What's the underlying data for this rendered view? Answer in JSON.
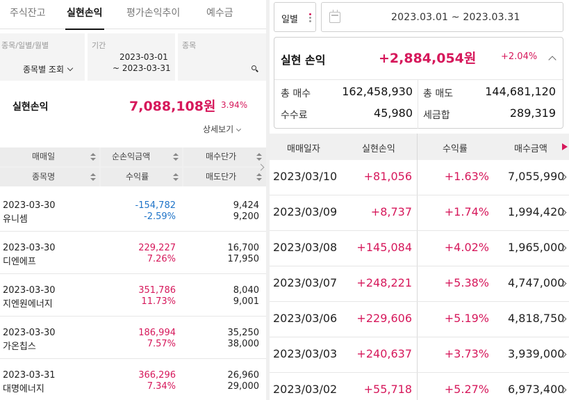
{
  "left": {
    "tabs": [
      {
        "label": "주식잔고"
      },
      {
        "label": "실현손익"
      },
      {
        "label": "평가손익추이"
      },
      {
        "label": "예수금"
      }
    ],
    "filter": {
      "col1_label": "종목/일별/월별",
      "col1_value": "종목별 조회",
      "col2_label": "기간",
      "col2_from": "2023-03-01",
      "col2_to": "~ 2023-03-31",
      "col3_label": "종목"
    },
    "summary": {
      "label": "실현손익",
      "amount": "7,088,108원",
      "rate": "3.94%",
      "detail": "상세보기"
    },
    "table": {
      "headers_row1": [
        "매매일",
        "순손익금액",
        "매수단가"
      ],
      "headers_row2": [
        "종목명",
        "수익률",
        "매도단가"
      ],
      "rows": [
        {
          "date": "2023-03-30",
          "name": "유니셈",
          "amount": "-154,782",
          "rate": "-2.59%",
          "buy": "9,424",
          "sell": "9,200",
          "sign": "neg"
        },
        {
          "date": "2023-03-30",
          "name": "디엔에프",
          "amount": "229,227",
          "rate": "7.26%",
          "buy": "16,700",
          "sell": "17,950",
          "sign": "pos"
        },
        {
          "date": "2023-03-30",
          "name": "지엔원에너지",
          "amount": "351,786",
          "rate": "11.73%",
          "buy": "8,040",
          "sell": "9,001",
          "sign": "pos"
        },
        {
          "date": "2023-03-30",
          "name": "가온칩스",
          "amount": "186,994",
          "rate": "7.57%",
          "buy": "35,250",
          "sell": "38,000",
          "sign": "pos"
        },
        {
          "date": "2023-03-31",
          "name": "대명에너지",
          "amount": "366,296",
          "rate": "7.34%",
          "buy": "26,960",
          "sell": "29,000",
          "sign": "pos"
        }
      ]
    }
  },
  "right": {
    "period_select": "일별",
    "date_range": "2023.03.01 ~ 2023.03.31",
    "card": {
      "title": "실현 손익",
      "amount": "+2,884,054원",
      "rate": "+2.04%",
      "stats": [
        {
          "label": "총 매수",
          "value": "162,458,930"
        },
        {
          "label": "총 매도",
          "value": "144,681,120"
        },
        {
          "label": "수수료",
          "value": "45,980"
        },
        {
          "label": "세금합",
          "value": "289,319"
        }
      ]
    },
    "table": {
      "headers": [
        "매매일자",
        "실현손익",
        "수익률",
        "매수금액"
      ],
      "rows": [
        {
          "date": "2023/03/10",
          "pnl": "+81,056",
          "rate": "+1.63%",
          "buy": "7,055,990"
        },
        {
          "date": "2023/03/09",
          "pnl": "+8,737",
          "rate": "+1.74%",
          "buy": "1,994,420"
        },
        {
          "date": "2023/03/08",
          "pnl": "+145,084",
          "rate": "+4.02%",
          "buy": "1,965,000"
        },
        {
          "date": "2023/03/07",
          "pnl": "+248,221",
          "rate": "+5.38%",
          "buy": "4,747,000"
        },
        {
          "date": "2023/03/06",
          "pnl": "+229,606",
          "rate": "+5.19%",
          "buy": "4,818,750"
        },
        {
          "date": "2023/03/03",
          "pnl": "+240,637",
          "rate": "+3.73%",
          "buy": "3,939,000"
        },
        {
          "date": "2023/03/02",
          "pnl": "+55,718",
          "rate": "+5.27%",
          "buy": "6,973,400"
        }
      ]
    }
  },
  "colors": {
    "positive": "#d6185b",
    "negative": "#1f74c8"
  }
}
